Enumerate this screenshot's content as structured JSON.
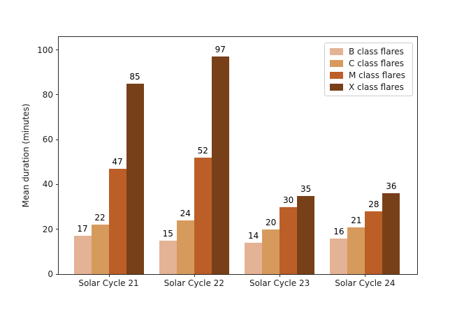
{
  "chart_data": {
    "type": "bar",
    "title": "",
    "categories": [
      "Solar Cycle 21",
      "Solar Cycle 22",
      "Solar Cycle 23",
      "Solar Cycle 24"
    ],
    "series": [
      {
        "name": "B class flares",
        "color": "#e4b294",
        "values": [
          17,
          15,
          14,
          16
        ]
      },
      {
        "name": "C class flares",
        "color": "#d79a5d",
        "values": [
          22,
          24,
          20,
          21
        ]
      },
      {
        "name": "M class flares",
        "color": "#bc5e27",
        "values": [
          47,
          52,
          30,
          28
        ]
      },
      {
        "name": "X class flares",
        "color": "#784019",
        "values": [
          85,
          97,
          35,
          36
        ]
      }
    ],
    "xlabel": "",
    "ylabel": "Mean duration (minutes)",
    "yticks": [
      0,
      20,
      40,
      60,
      80,
      100
    ],
    "ylim": [
      0,
      105.8
    ],
    "bar_value_labels": true,
    "legend_position": "upper right",
    "grid": false,
    "colors": {
      "frame": "#2b2b2b",
      "text": "#1a1a1a",
      "background": "#ffffff"
    }
  }
}
